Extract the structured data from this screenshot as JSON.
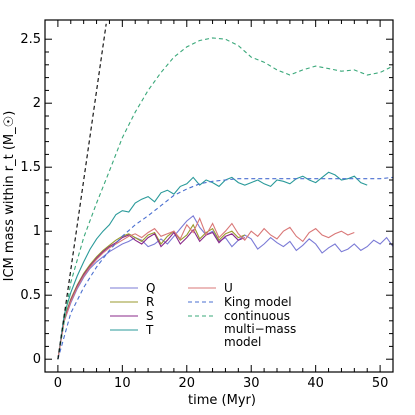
{
  "chart_data": {
    "type": "line",
    "xlabel": "time (Myr)",
    "ylabel": "ICM mass within r_t (M_☉)",
    "xlim": [
      -2,
      52
    ],
    "ylim": [
      -0.1,
      2.65
    ],
    "xticks": [
      0,
      10,
      20,
      30,
      40,
      50
    ],
    "yticks": [
      0,
      0.5,
      1,
      1.5,
      2,
      2.5
    ],
    "xtick_labels": [
      "0",
      "10",
      "20",
      "30",
      "40",
      "50"
    ],
    "ytick_labels": [
      "0",
      "0.5",
      "1",
      "1.5",
      "2",
      "2.5"
    ],
    "grid": false,
    "legend_position": "bottom-center",
    "series": [
      {
        "name": "Q",
        "color": "#7b7bd6",
        "style": "solid",
        "x": [
          0,
          1,
          2,
          3,
          4,
          5,
          6,
          7,
          8,
          9,
          10,
          11,
          12,
          13,
          14,
          15,
          16,
          17,
          18,
          19,
          20,
          21,
          22,
          23,
          24,
          25,
          26,
          27,
          28,
          29,
          30,
          31,
          32,
          33,
          34,
          35,
          36,
          37,
          38,
          39,
          40,
          41,
          42,
          43,
          44,
          45,
          46,
          47,
          48,
          49,
          50,
          51,
          52
        ],
        "y": [
          0,
          0.3,
          0.44,
          0.55,
          0.64,
          0.71,
          0.76,
          0.8,
          0.84,
          0.87,
          0.9,
          0.92,
          0.95,
          0.93,
          0.88,
          0.9,
          0.94,
          0.9,
          0.96,
          1.02,
          1.08,
          1.12,
          1.03,
          0.97,
          1.0,
          0.92,
          0.95,
          0.88,
          0.93,
          0.97,
          0.94,
          0.86,
          0.9,
          0.95,
          0.91,
          0.88,
          0.92,
          0.85,
          0.89,
          0.94,
          0.9,
          0.83,
          0.87,
          0.9,
          0.84,
          0.86,
          0.9,
          0.85,
          0.88,
          0.93,
          0.9,
          0.95,
          0.88
        ]
      },
      {
        "name": "R",
        "color": "#9a9a2c",
        "style": "solid",
        "x": [
          0,
          1,
          2,
          3,
          4,
          5,
          6,
          7,
          8,
          9,
          10,
          11,
          12,
          13,
          14,
          15,
          16,
          17,
          18,
          19,
          20,
          21,
          22,
          23,
          24,
          25,
          26,
          27,
          28,
          29
        ],
        "y": [
          0,
          0.32,
          0.47,
          0.58,
          0.67,
          0.74,
          0.8,
          0.85,
          0.89,
          0.93,
          0.96,
          0.98,
          0.95,
          0.92,
          0.97,
          0.99,
          0.9,
          0.96,
          1.0,
          0.93,
          0.97,
          1.05,
          0.94,
          0.99,
          1.02,
          0.93,
          0.98,
          1.0,
          0.95,
          0.97
        ]
      },
      {
        "name": "S",
        "color": "#8a2a8a",
        "style": "solid",
        "x": [
          0,
          1,
          2,
          3,
          4,
          5,
          6,
          7,
          8,
          9,
          10,
          11,
          12,
          13,
          14,
          15,
          16,
          17,
          18,
          19,
          20,
          21,
          22,
          23,
          24,
          25,
          26,
          27,
          28,
          29
        ],
        "y": [
          0,
          0.31,
          0.46,
          0.57,
          0.66,
          0.73,
          0.79,
          0.84,
          0.88,
          0.91,
          0.95,
          0.97,
          0.93,
          0.9,
          0.95,
          0.98,
          0.88,
          0.93,
          0.99,
          0.9,
          0.95,
          1.01,
          0.92,
          0.97,
          0.99,
          0.91,
          0.96,
          0.98,
          0.93,
          0.95
        ]
      },
      {
        "name": "T",
        "color": "#2a9a9a",
        "style": "solid",
        "x": [
          0,
          1,
          2,
          3,
          4,
          5,
          6,
          7,
          8,
          9,
          10,
          11,
          12,
          13,
          14,
          15,
          16,
          17,
          18,
          19,
          20,
          21,
          22,
          23,
          24,
          25,
          26,
          27,
          28,
          29,
          30,
          31,
          32,
          33,
          34,
          35,
          36,
          37,
          38,
          39,
          40,
          41,
          42,
          43,
          44,
          45,
          46,
          47,
          48
        ],
        "y": [
          0,
          0.35,
          0.52,
          0.65,
          0.76,
          0.86,
          0.94,
          1.0,
          1.05,
          1.13,
          1.16,
          1.15,
          1.22,
          1.25,
          1.27,
          1.23,
          1.3,
          1.32,
          1.29,
          1.35,
          1.37,
          1.42,
          1.36,
          1.4,
          1.38,
          1.35,
          1.4,
          1.42,
          1.38,
          1.36,
          1.38,
          1.4,
          1.37,
          1.35,
          1.4,
          1.39,
          1.37,
          1.41,
          1.43,
          1.4,
          1.38,
          1.42,
          1.46,
          1.44,
          1.4,
          1.41,
          1.43,
          1.38,
          1.36
        ]
      },
      {
        "name": "U",
        "color": "#d97777",
        "style": "solid",
        "x": [
          0,
          1,
          2,
          3,
          4,
          5,
          6,
          7,
          8,
          9,
          10,
          11,
          12,
          13,
          14,
          15,
          16,
          17,
          18,
          19,
          20,
          21,
          22,
          23,
          24,
          25,
          26,
          27,
          28,
          29,
          30,
          31,
          32,
          33,
          34,
          35,
          36,
          37,
          38,
          39,
          40,
          41,
          42,
          43,
          44,
          45,
          46
        ],
        "y": [
          0,
          0.3,
          0.45,
          0.56,
          0.65,
          0.72,
          0.78,
          0.83,
          0.87,
          0.9,
          0.93,
          0.96,
          0.98,
          0.95,
          0.99,
          1.02,
          0.96,
          0.98,
          1.0,
          0.94,
          1.05,
          0.99,
          1.1,
          0.97,
          1.06,
          0.95,
          1.0,
          1.06,
          0.98,
          0.93,
          1.0,
          0.96,
          1.02,
          0.97,
          0.94,
          1.0,
          1.03,
          0.96,
          0.92,
          0.99,
          1.02,
          0.97,
          0.95,
          0.98,
          1.0,
          0.97,
          0.99
        ]
      },
      {
        "name": "King model",
        "color": "#4a6fd0",
        "style": "dashed",
        "x": [
          0,
          2,
          4,
          6,
          8,
          10,
          12,
          14,
          16,
          18,
          20,
          22,
          24,
          26,
          28,
          30,
          32,
          34,
          36,
          38,
          40,
          42,
          44,
          46,
          48,
          50,
          52
        ],
        "y": [
          0,
          0.36,
          0.56,
          0.72,
          0.85,
          0.96,
          1.05,
          1.12,
          1.2,
          1.28,
          1.33,
          1.37,
          1.39,
          1.4,
          1.41,
          1.41,
          1.41,
          1.41,
          1.41,
          1.41,
          1.41,
          1.41,
          1.41,
          1.41,
          1.41,
          1.41,
          1.42
        ]
      },
      {
        "name": "continuous multi−mass model",
        "color": "#3aa87a",
        "style": "dashed",
        "x": [
          0,
          2,
          4,
          6,
          8,
          10,
          12,
          14,
          16,
          18,
          20,
          22,
          24,
          26,
          28,
          30,
          32,
          34,
          36,
          38,
          40,
          42,
          44,
          46,
          48,
          50,
          52
        ],
        "y": [
          0,
          0.6,
          0.95,
          1.22,
          1.47,
          1.73,
          1.93,
          2.1,
          2.24,
          2.36,
          2.44,
          2.49,
          2.51,
          2.5,
          2.45,
          2.36,
          2.32,
          2.26,
          2.22,
          2.26,
          2.29,
          2.27,
          2.25,
          2.26,
          2.22,
          2.24,
          2.29
        ]
      },
      {
        "name": "",
        "color": "#000000",
        "style": "dashed",
        "x": [
          0,
          7.5
        ],
        "y": [
          0,
          2.62
        ]
      }
    ]
  }
}
